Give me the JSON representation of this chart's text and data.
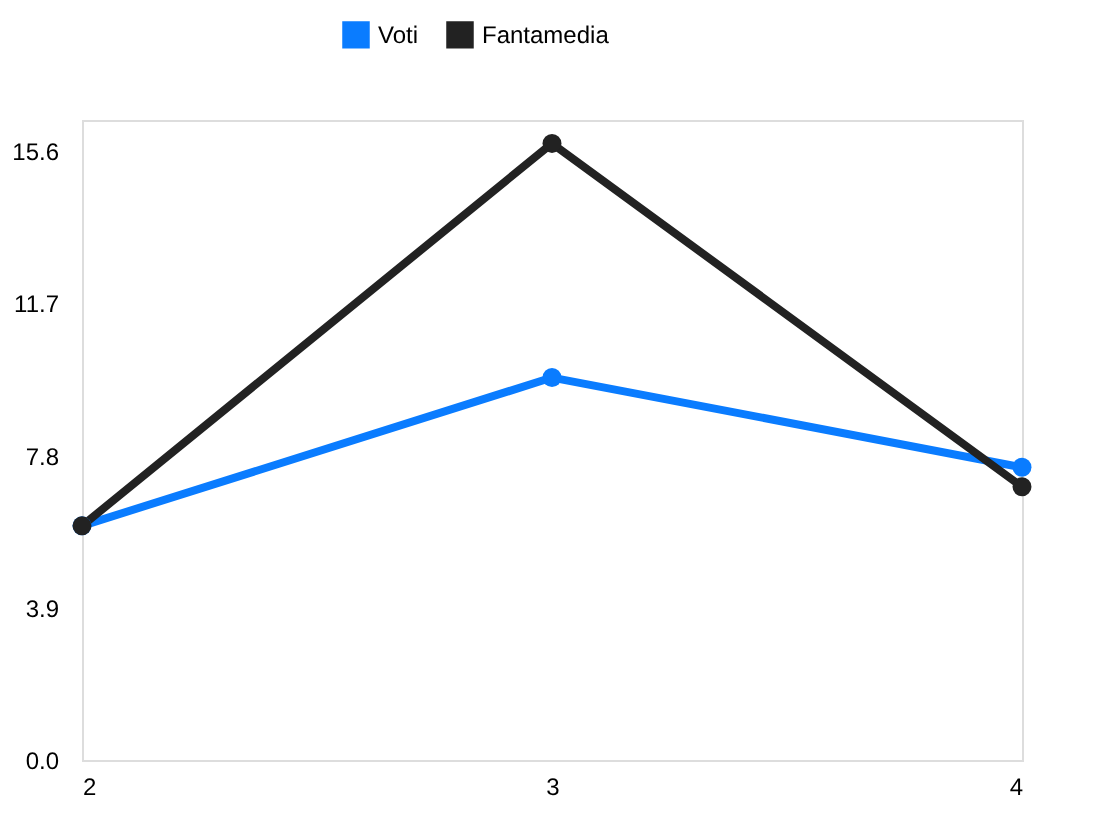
{
  "chart_data": {
    "type": "line",
    "x": [
      2,
      3,
      4
    ],
    "xlim": [
      2,
      4
    ],
    "xticks": [
      2,
      3,
      4
    ],
    "ylim": [
      0,
      16.4
    ],
    "yticks": [
      {
        "value": 0,
        "label": "0.0"
      },
      3.9,
      7.8,
      11.7,
      15.6
    ],
    "series": [
      {
        "name": "Voti",
        "color": "#0a7cff",
        "values": [
          6,
          9.8,
          7.5
        ]
      },
      {
        "name": "Fantamedia",
        "color": "#222222",
        "values": [
          6,
          15.8,
          7
        ]
      }
    ],
    "legend": "top",
    "grid": false,
    "marker": "circle",
    "line_style": "solid"
  }
}
